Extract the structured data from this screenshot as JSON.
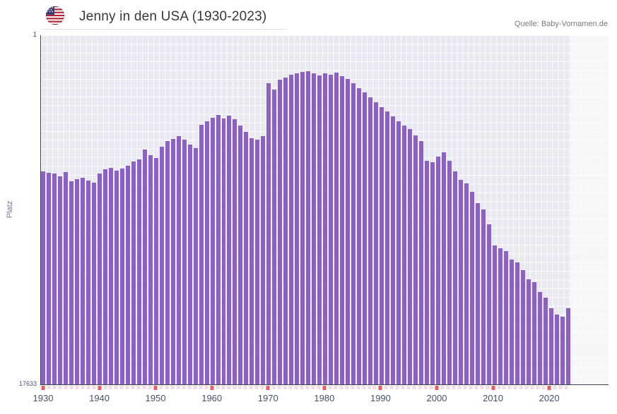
{
  "header": {
    "title": "Jenny in den USA (1930-2023)",
    "source": "Quelle: Baby-Vornamen.de"
  },
  "chart_data": {
    "type": "bar",
    "title": "Jenny in den USA (1930-2023)",
    "xlabel": "",
    "ylabel": "Platz",
    "y_axis": {
      "top_label": "1",
      "bottom_label": "17633",
      "min": 1,
      "max": 17633,
      "inverted": true
    },
    "x_ticks": [
      1930,
      1940,
      1950,
      1960,
      1970,
      1980,
      1990,
      2000,
      2010,
      2020
    ],
    "categories": [
      1930,
      1931,
      1932,
      1933,
      1934,
      1935,
      1936,
      1937,
      1938,
      1939,
      1940,
      1941,
      1942,
      1943,
      1944,
      1945,
      1946,
      1947,
      1948,
      1949,
      1950,
      1951,
      1952,
      1953,
      1954,
      1955,
      1956,
      1957,
      1958,
      1959,
      1960,
      1961,
      1962,
      1963,
      1964,
      1965,
      1966,
      1967,
      1968,
      1969,
      1970,
      1971,
      1972,
      1973,
      1974,
      1975,
      1976,
      1977,
      1978,
      1979,
      1980,
      1981,
      1982,
      1983,
      1984,
      1985,
      1986,
      1987,
      1988,
      1989,
      1990,
      1991,
      1992,
      1993,
      1994,
      1995,
      1996,
      1997,
      1998,
      1999,
      2000,
      2001,
      2002,
      2003,
      2004,
      2005,
      2006,
      2007,
      2008,
      2009,
      2010,
      2011,
      2012,
      2013,
      2014,
      2015,
      2016,
      2017,
      2018,
      2019,
      2020,
      2021,
      2022,
      2023
    ],
    "values": [
      6880,
      6950,
      6980,
      7120,
      6910,
      7370,
      7270,
      7200,
      7340,
      7440,
      6980,
      6770,
      6700,
      6840,
      6730,
      6590,
      6380,
      6270,
      5770,
      6060,
      6200,
      5630,
      5340,
      5240,
      5090,
      5270,
      5520,
      5700,
      4520,
      4350,
      4170,
      4030,
      4200,
      4060,
      4240,
      4560,
      4880,
      5200,
      5270,
      5090,
      2420,
      2740,
      2240,
      2140,
      2000,
      1920,
      1850,
      1820,
      1920,
      2030,
      1920,
      2000,
      1890,
      2070,
      2210,
      2420,
      2670,
      2890,
      3140,
      3380,
      3630,
      3850,
      4100,
      4350,
      4560,
      4740,
      5060,
      5340,
      6340,
      6410,
      6130,
      5910,
      6340,
      6880,
      7300,
      7480,
      7910,
      8480,
      8800,
      9550,
      10610,
      10760,
      10900,
      11330,
      11470,
      11860,
      12320,
      12470,
      12970,
      13250,
      13780,
      14100,
      14210,
      13780
    ],
    "bar_color": "#8c61c6",
    "plot_background": "#e9e9f1",
    "axis_color": "#37474f",
    "tick_color_decade": "#e4605e",
    "tick_color_minor": "#f6dbe2",
    "label_color": "#44546a",
    "legend": "none",
    "grid": "fine white mesh",
    "recent_band_note": "lighter shaded band at right edge of plot"
  }
}
